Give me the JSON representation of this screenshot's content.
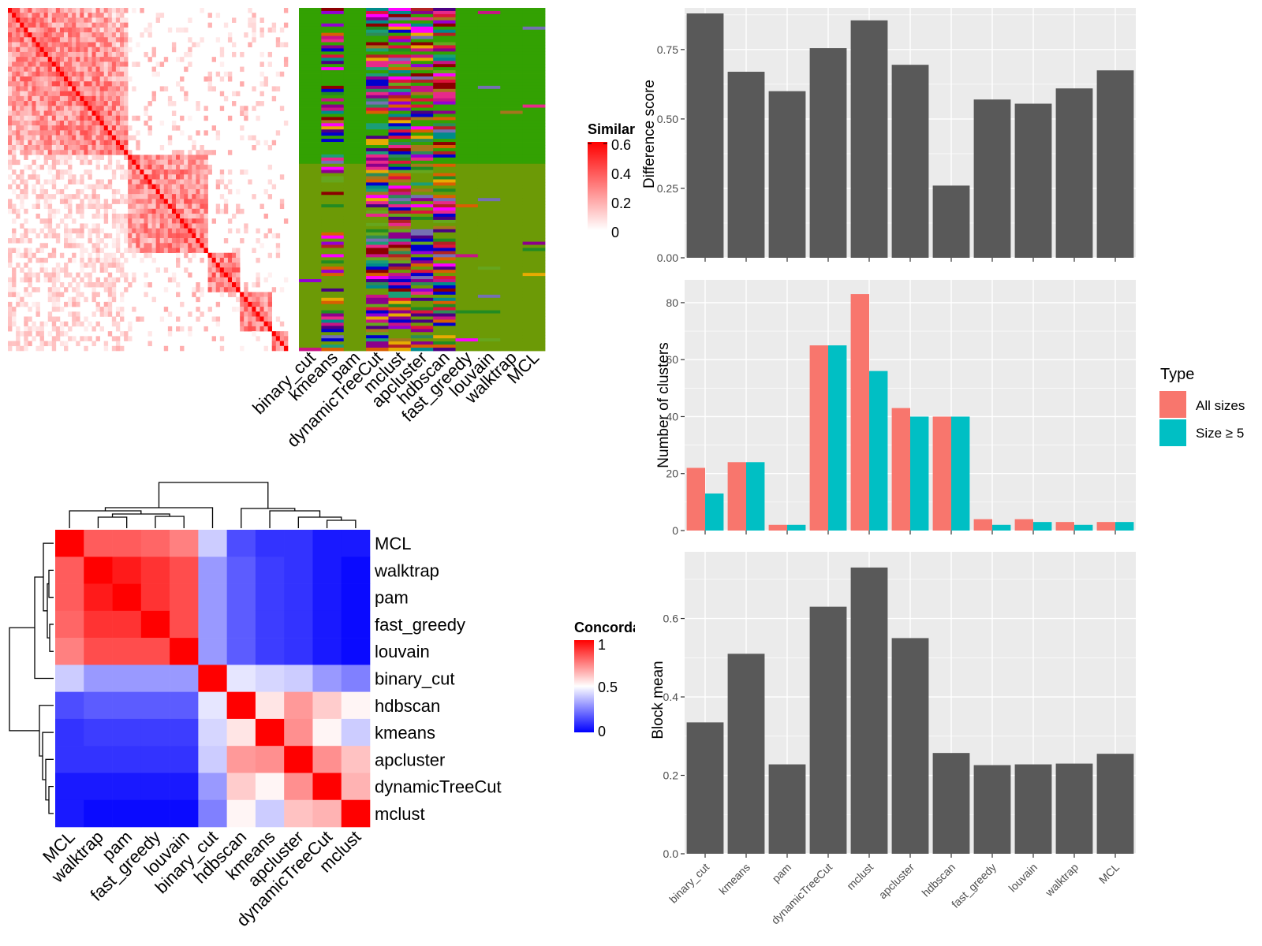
{
  "methods": [
    "binary_cut",
    "kmeans",
    "pam",
    "dynamicTreeCut",
    "mclust",
    "apcluster",
    "hdbscan",
    "fast_greedy",
    "louvain",
    "walktrap",
    "MCL"
  ],
  "colors": {
    "bar": "#595959",
    "all_sizes": "#F8766D",
    "size_ge5": "#00BFC4",
    "panel_bg": "#EBEBEB",
    "grid": "#FFFFFF",
    "heat_high": "#FF0000",
    "heat_mid": "#FFFFFF",
    "heat_low": "#0000FF",
    "green_main": "#33A102",
    "green_alt": "#6C9A06"
  },
  "similarity_heatmap": {
    "legend_title": "Similarity",
    "legend_ticks": [
      "0.6",
      "0.4",
      "0.2",
      "0"
    ]
  },
  "membership_heatmap": {
    "columns": [
      "binary_cut",
      "kmeans",
      "pam",
      "dynamicTreeCut",
      "mclust",
      "apcluster",
      "hdbscan",
      "fast_greedy",
      "louvain",
      "walktrap",
      "MCL"
    ]
  },
  "concordance": {
    "legend_title": "Concordance",
    "legend_ticks": [
      "1",
      "0.5",
      "0"
    ],
    "order": [
      "MCL",
      "walktrap",
      "pam",
      "fast_greedy",
      "louvain",
      "binary_cut",
      "hdbscan",
      "kmeans",
      "apcluster",
      "dynamicTreeCut",
      "mclust"
    ],
    "matrix": [
      [
        1.0,
        0.82,
        0.82,
        0.8,
        0.75,
        0.4,
        0.15,
        0.1,
        0.1,
        0.05,
        0.05
      ],
      [
        0.82,
        1.0,
        0.95,
        0.9,
        0.85,
        0.3,
        0.18,
        0.12,
        0.1,
        0.05,
        0.02
      ],
      [
        0.82,
        0.95,
        1.0,
        0.9,
        0.85,
        0.3,
        0.18,
        0.12,
        0.1,
        0.05,
        0.02
      ],
      [
        0.8,
        0.9,
        0.9,
        1.0,
        0.85,
        0.3,
        0.18,
        0.12,
        0.1,
        0.05,
        0.02
      ],
      [
        0.75,
        0.85,
        0.85,
        0.85,
        1.0,
        0.3,
        0.18,
        0.12,
        0.1,
        0.05,
        0.02
      ],
      [
        0.4,
        0.3,
        0.3,
        0.3,
        0.3,
        1.0,
        0.45,
        0.42,
        0.4,
        0.3,
        0.25
      ],
      [
        0.15,
        0.18,
        0.18,
        0.18,
        0.18,
        0.45,
        1.0,
        0.55,
        0.7,
        0.6,
        0.52
      ],
      [
        0.1,
        0.12,
        0.12,
        0.12,
        0.12,
        0.42,
        0.55,
        1.0,
        0.72,
        0.52,
        0.4
      ],
      [
        0.1,
        0.1,
        0.1,
        0.1,
        0.1,
        0.4,
        0.7,
        0.72,
        1.0,
        0.72,
        0.62
      ],
      [
        0.05,
        0.05,
        0.05,
        0.05,
        0.05,
        0.3,
        0.6,
        0.52,
        0.72,
        1.0,
        0.65
      ],
      [
        0.05,
        0.02,
        0.02,
        0.02,
        0.02,
        0.25,
        0.52,
        0.4,
        0.62,
        0.65,
        1.0
      ]
    ]
  },
  "chart_data": [
    {
      "type": "bar",
      "categories": [
        "binary_cut",
        "kmeans",
        "pam",
        "dynamicTreeCut",
        "mclust",
        "apcluster",
        "hdbscan",
        "fast_greedy",
        "louvain",
        "walktrap",
        "MCL"
      ],
      "values": [
        0.88,
        0.67,
        0.6,
        0.755,
        0.855,
        0.695,
        0.26,
        0.57,
        0.555,
        0.61,
        0.675
      ],
      "xlabel": "",
      "ylabel": "Difference score",
      "ylim": [
        0,
        0.9
      ],
      "yticks": [
        "0.00",
        "0.25",
        "0.50",
        "0.75"
      ]
    },
    {
      "type": "bar",
      "categories": [
        "binary_cut",
        "kmeans",
        "pam",
        "dynamicTreeCut",
        "mclust",
        "apcluster",
        "hdbscan",
        "fast_greedy",
        "louvain",
        "walktrap",
        "MCL"
      ],
      "series": [
        {
          "name": "All sizes",
          "values": [
            22,
            24,
            2,
            65,
            83,
            43,
            40,
            4,
            4,
            3,
            3
          ]
        },
        {
          "name": "Size ≥ 5",
          "values": [
            13,
            24,
            2,
            65,
            56,
            40,
            40,
            2,
            3,
            2,
            3
          ]
        }
      ],
      "xlabel": "",
      "ylabel": "Number of clusters",
      "ylim": [
        0,
        88
      ],
      "yticks": [
        "0",
        "20",
        "40",
        "60",
        "80"
      ],
      "legend_title": "Type",
      "legend_position": "right"
    },
    {
      "type": "bar",
      "categories": [
        "binary_cut",
        "kmeans",
        "pam",
        "dynamicTreeCut",
        "mclust",
        "apcluster",
        "hdbscan",
        "fast_greedy",
        "louvain",
        "walktrap",
        "MCL"
      ],
      "values": [
        0.335,
        0.51,
        0.228,
        0.63,
        0.73,
        0.55,
        0.257,
        0.226,
        0.228,
        0.23,
        0.255
      ],
      "xlabel": "",
      "ylabel": "Block mean",
      "ylim": [
        0,
        0.77
      ],
      "yticks": [
        "0.0",
        "0.2",
        "0.4",
        "0.6"
      ]
    }
  ]
}
